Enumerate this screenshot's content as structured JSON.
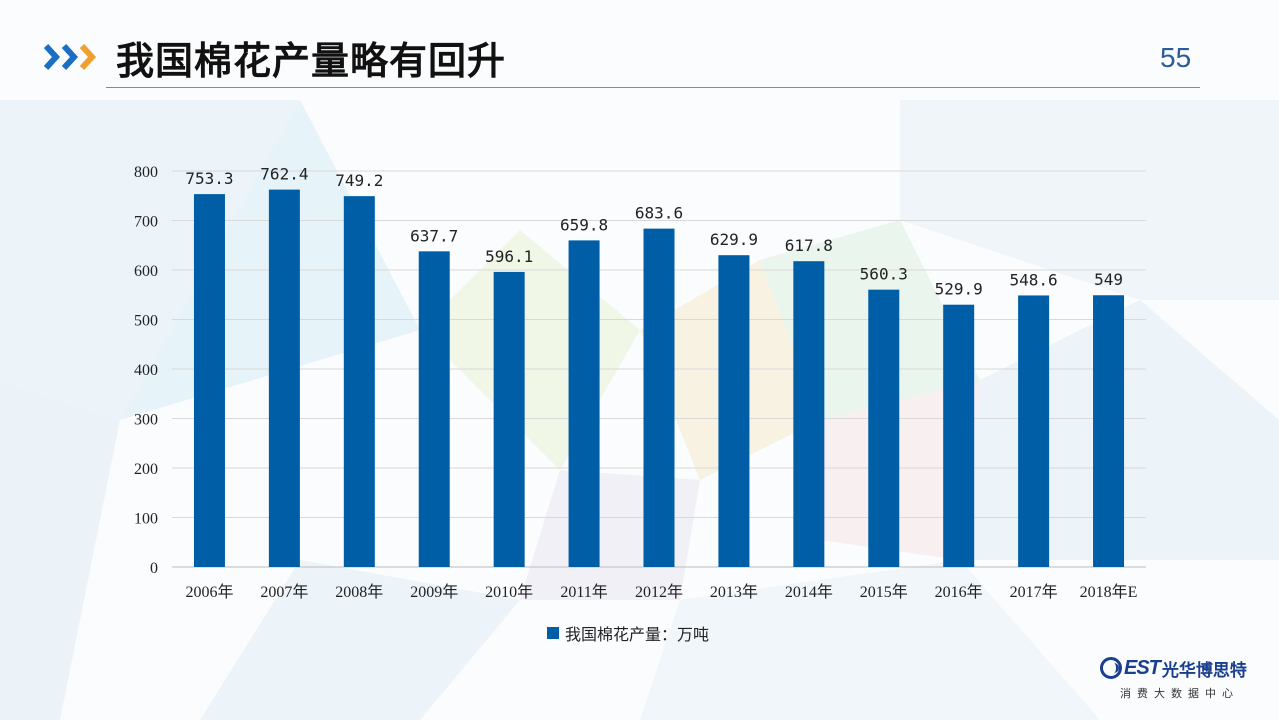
{
  "slide": {
    "title": "我国棉花产量略有回升",
    "page_number": "55"
  },
  "brand": {
    "logo_text": "EST",
    "name": "光华博思特",
    "subtitle": "消费大数据中心"
  },
  "colors": {
    "bar": "#005ea6",
    "accent_blue": "#1b6ec2",
    "accent_orange": "#f0a030"
  },
  "icons": {
    "header": "triple-chevron-right-icon"
  },
  "chart_data": {
    "type": "bar",
    "categories": [
      "2006年",
      "2007年",
      "2008年",
      "2009年",
      "2010年",
      "2011年",
      "2012年",
      "2013年",
      "2014年",
      "2015年",
      "2016年",
      "2017年",
      "2018年E"
    ],
    "series": [
      {
        "name": "我国棉花产量：万吨",
        "values": [
          753.3,
          762.4,
          749.2,
          637.7,
          596.1,
          659.8,
          683.6,
          629.9,
          617.8,
          560.3,
          529.9,
          548.6,
          549
        ],
        "labels": [
          "753.3",
          "762.4",
          "749.2",
          "637.7",
          "596.1",
          "659.8",
          "683.6",
          "629.9",
          "617.8",
          "560.3",
          "529.9",
          "548.6",
          "549"
        ]
      }
    ],
    "yticks": [
      "0",
      "100",
      "200",
      "300",
      "400",
      "500",
      "600",
      "700",
      "800"
    ],
    "ylim": [
      0,
      800
    ],
    "grid": true,
    "legend": "bottom"
  }
}
